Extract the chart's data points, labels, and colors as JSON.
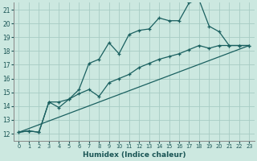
{
  "xlabel": "Humidex (Indice chaleur)",
  "ylabel": "",
  "background_color": "#cce8e0",
  "grid_color": "#a8ccc4",
  "line_color": "#1a6060",
  "xlim": [
    -0.5,
    23.5
  ],
  "ylim": [
    11.5,
    21.5
  ],
  "yticks": [
    12,
    13,
    14,
    15,
    16,
    17,
    18,
    19,
    20,
    21
  ],
  "xticks": [
    0,
    1,
    2,
    3,
    4,
    5,
    6,
    7,
    8,
    9,
    10,
    11,
    12,
    13,
    14,
    15,
    16,
    17,
    18,
    19,
    20,
    21,
    22,
    23
  ],
  "series1_x": [
    0,
    1,
    2,
    3,
    4,
    5,
    6,
    7,
    8,
    9,
    10,
    11,
    12,
    13,
    14,
    15,
    16,
    17,
    18,
    19,
    20,
    21,
    22,
    23
  ],
  "series1_y": [
    12.1,
    12.2,
    12.1,
    14.3,
    14.3,
    14.5,
    15.2,
    17.1,
    17.4,
    18.6,
    17.8,
    19.2,
    19.5,
    19.6,
    20.4,
    20.2,
    20.2,
    21.5,
    21.7,
    19.8,
    19.4,
    18.4,
    18.4,
    18.4
  ],
  "series2_x": [
    0,
    1,
    2,
    3,
    4,
    5,
    6,
    7,
    8,
    9,
    10,
    11,
    12,
    13,
    14,
    15,
    16,
    17,
    18,
    19,
    20,
    21,
    22,
    23
  ],
  "series2_y": [
    12.1,
    12.2,
    12.1,
    14.3,
    13.9,
    14.5,
    14.9,
    15.2,
    14.7,
    15.7,
    16.0,
    16.3,
    16.8,
    17.1,
    17.4,
    17.6,
    17.8,
    18.1,
    18.4,
    18.2,
    18.4,
    18.4,
    18.4,
    18.4
  ],
  "series3_x": [
    0,
    23
  ],
  "series3_y": [
    12.1,
    18.4
  ]
}
